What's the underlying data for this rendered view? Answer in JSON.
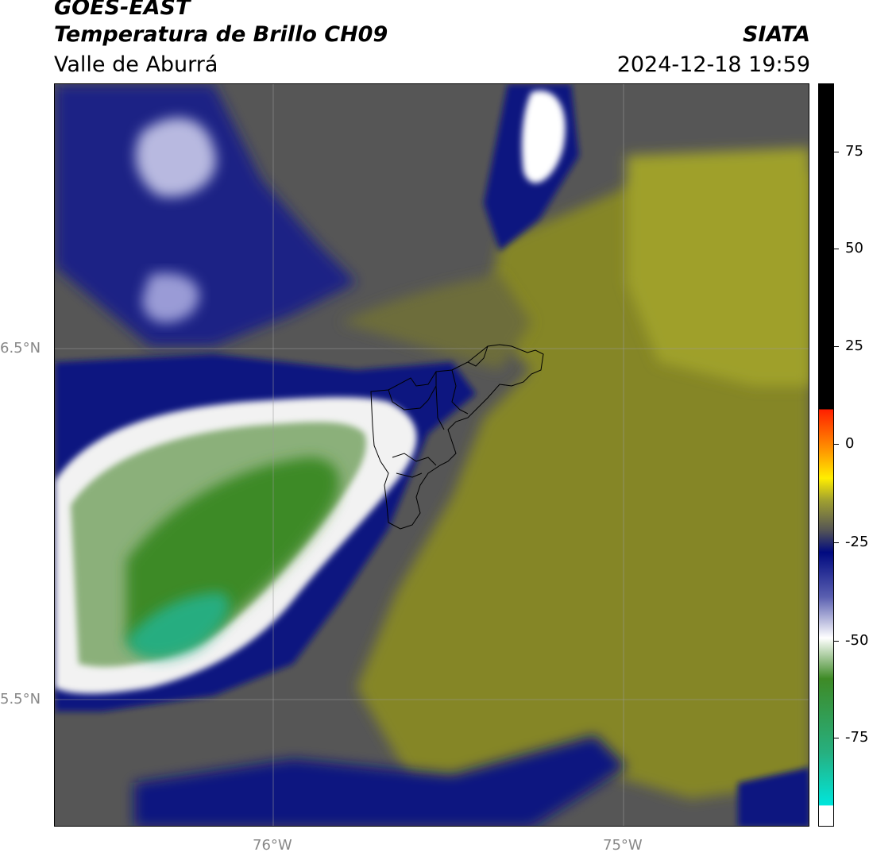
{
  "header": {
    "satellite": "GOES-EAST",
    "product": "Temperatura de Brillo CH09",
    "region": "Valle de Aburrá",
    "source": "SIATA",
    "datetime": "2024-12-18 19:59"
  },
  "axes": {
    "lat_labels": [
      "6.5°N",
      "5.5°N"
    ],
    "lon_labels": [
      "76°W",
      "75°W"
    ]
  },
  "colorbar": {
    "ticks": [
      "75",
      "50",
      "25",
      "0",
      "-25",
      "-50",
      "-75"
    ]
  },
  "colors": {
    "background_gray": "#555555",
    "olive": "#8e8f2d",
    "yellow_olive": "#a3a227",
    "navy": "#000a80",
    "blue_mid": "#4a4fa8",
    "white": "#ffffff",
    "green_dark": "#3e8a26",
    "teal": "#26b080",
    "cyan": "#00e6dc",
    "black": "#000000",
    "red": "#ff2000"
  }
}
